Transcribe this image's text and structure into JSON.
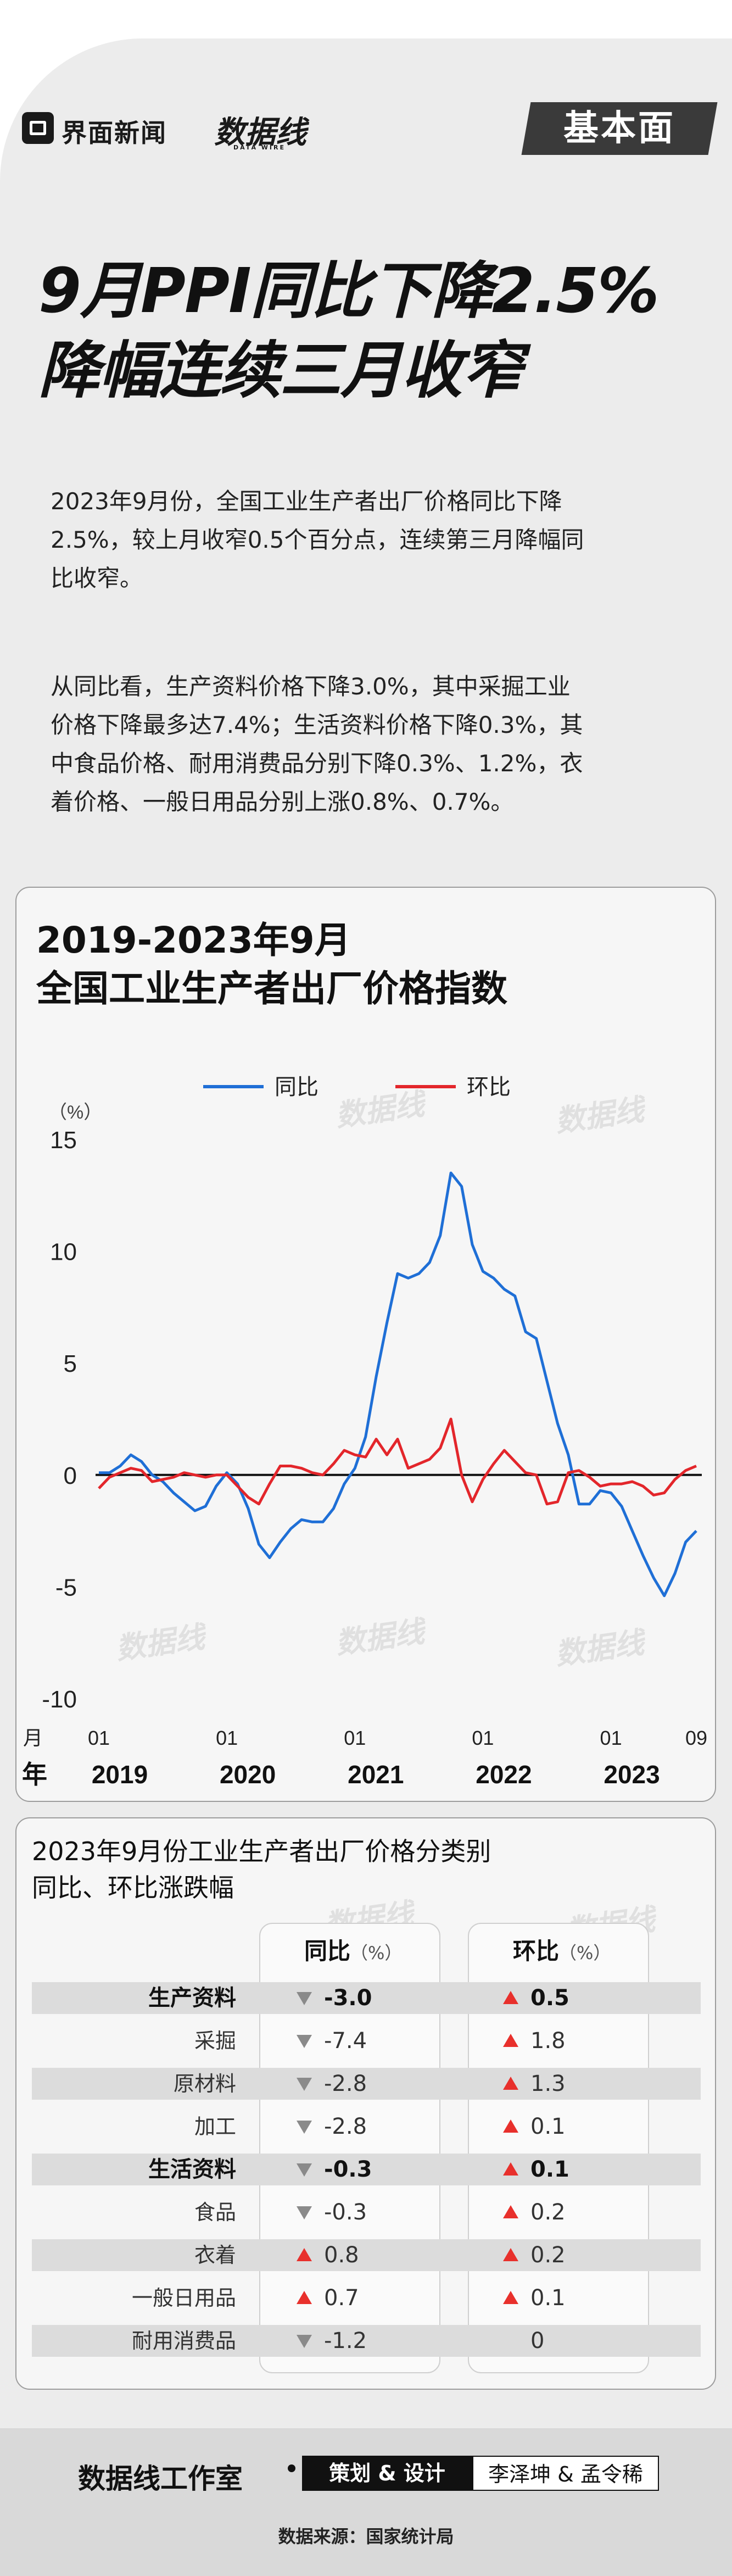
{
  "brand": {
    "jiemian": "界面新闻",
    "shujuxian": "数据线",
    "shujuxian_en": "DATA WIRE",
    "jibenmian": "基本面"
  },
  "title_lines": [
    "9月PPI同比下降2.5%",
    "降幅连续三月收窄"
  ],
  "paragraphs": [
    [
      "2023年9月份，全国工业生产者出厂价格同比下降",
      "2.5%，较上月收窄0.5个百分点，连续第三月降幅同",
      "比收窄。"
    ],
    [
      "从同比看，生产资料价格下降3.0%，其中采掘工业",
      "价格下降最多达7.4%；生活资料价格下降0.3%，其",
      "中食品价格、耐用消费品分别下降0.3%、1.2%，衣",
      "着价格、一般日用品分别上涨0.8%、0.7%。"
    ]
  ],
  "chart_title_lines": [
    "2019-2023年9月",
    "全国工业生产者出厂价格指数"
  ],
  "chart_data": {
    "type": "line",
    "title": "2019-2023年9月 全国工业生产者出厂价格指数",
    "ylabel": "（%）",
    "ylim": [
      -10,
      15
    ],
    "yticks": [
      15,
      10,
      5,
      0,
      -5,
      -10
    ],
    "xlabel_month": "月",
    "xlabel_year": "年",
    "x_tick_months": [
      "01",
      "01",
      "01",
      "01",
      "01",
      "09"
    ],
    "x_tick_years": [
      "2019",
      "2020",
      "2021",
      "2022",
      "2023"
    ],
    "months_count": 57,
    "colors": {
      "同比": "#1f6fd6",
      "环比": "#e3262b"
    },
    "series": [
      {
        "name": "同比",
        "values": [
          0.1,
          0.1,
          0.4,
          0.9,
          0.6,
          0.0,
          -0.3,
          -0.8,
          -1.2,
          -1.6,
          -1.4,
          -0.5,
          0.1,
          -0.4,
          -1.5,
          -3.1,
          -3.7,
          -3.0,
          -2.4,
          -2.0,
          -2.1,
          -2.1,
          -1.5,
          -0.4,
          0.3,
          1.7,
          4.4,
          6.8,
          9.0,
          8.8,
          9.0,
          9.5,
          10.7,
          13.5,
          12.9,
          10.3,
          9.1,
          8.8,
          8.3,
          8.0,
          6.4,
          6.1,
          4.2,
          2.3,
          0.9,
          -1.3,
          -1.3,
          -0.7,
          -0.8,
          -1.4,
          -2.5,
          -3.6,
          -4.6,
          -5.4,
          -4.4,
          -3.0,
          -2.5
        ]
      },
      {
        "name": "环比",
        "values": [
          -0.6,
          -0.1,
          0.1,
          0.3,
          0.2,
          -0.3,
          -0.2,
          -0.1,
          0.1,
          0.0,
          -0.1,
          0.0,
          0.0,
          -0.5,
          -1.0,
          -1.3,
          -0.4,
          0.4,
          0.4,
          0.3,
          0.1,
          0.0,
          0.5,
          1.1,
          0.9,
          0.8,
          1.6,
          0.9,
          1.6,
          0.3,
          0.5,
          0.7,
          1.2,
          2.5,
          0.0,
          -1.2,
          -0.2,
          0.5,
          1.1,
          0.6,
          0.1,
          0.0,
          -1.3,
          -1.2,
          0.1,
          0.2,
          -0.1,
          -0.5,
          -0.4,
          -0.4,
          -0.3,
          -0.5,
          -0.9,
          -0.8,
          -0.2,
          0.2,
          0.4
        ]
      }
    ]
  },
  "table": {
    "title_lines": [
      "2023年9月份工业生产者出厂价格分类别",
      "同比、环比涨跌幅"
    ],
    "col_yoy": "同比",
    "col_mom": "环比",
    "unit": "（%）",
    "rows": [
      {
        "label": "生产资料",
        "bold": true,
        "shaded": true,
        "yoy": "-3.0",
        "yoy_dir": "down",
        "mom": "0.5",
        "mom_dir": "up"
      },
      {
        "label": "采掘",
        "bold": false,
        "shaded": false,
        "yoy": "-7.4",
        "yoy_dir": "down",
        "mom": "1.8",
        "mom_dir": "up"
      },
      {
        "label": "原材料",
        "bold": false,
        "shaded": true,
        "yoy": "-2.8",
        "yoy_dir": "down",
        "mom": "1.3",
        "mom_dir": "up"
      },
      {
        "label": "加工",
        "bold": false,
        "shaded": false,
        "yoy": "-2.8",
        "yoy_dir": "down",
        "mom": "0.1",
        "mom_dir": "up"
      },
      {
        "label": "生活资料",
        "bold": true,
        "shaded": true,
        "yoy": "-0.3",
        "yoy_dir": "down",
        "mom": "0.1",
        "mom_dir": "up"
      },
      {
        "label": "食品",
        "bold": false,
        "shaded": false,
        "yoy": "-0.3",
        "yoy_dir": "down",
        "mom": "0.2",
        "mom_dir": "up"
      },
      {
        "label": "衣着",
        "bold": false,
        "shaded": true,
        "yoy": "0.8",
        "yoy_dir": "up",
        "mom": "0.2",
        "mom_dir": "up"
      },
      {
        "label": "一般日用品",
        "bold": false,
        "shaded": false,
        "yoy": "0.7",
        "yoy_dir": "up",
        "mom": "0.1",
        "mom_dir": "up"
      },
      {
        "label": "耐用消费品",
        "bold": false,
        "shaded": true,
        "yoy": "-1.2",
        "yoy_dir": "down",
        "mom": "0",
        "mom_dir": "none"
      }
    ]
  },
  "footer": {
    "studio": "数据线工作室",
    "role": "策划 & 设计",
    "names": "李泽坤 & 孟令稀",
    "source": "数据来源：国家统计局"
  }
}
